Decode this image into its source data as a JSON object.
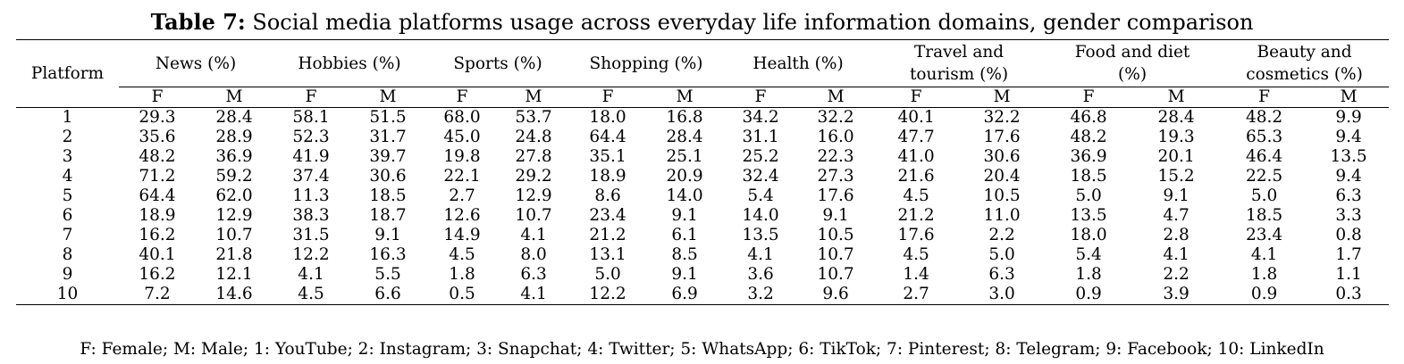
{
  "caption": {
    "label": "Table 7:",
    "text": " Social media platforms usage across everyday life information domains, gender comparison"
  },
  "header": {
    "platform": "Platform",
    "groups": [
      "News (%)",
      "Hobbies (%)",
      "Sports (%)",
      "Shopping (%)",
      "Health (%)",
      "Travel and tourism (%)",
      "Food and diet (%)",
      "Beauty and cosmetics (%)"
    ],
    "sub": [
      "F",
      "M"
    ]
  },
  "rows": [
    {
      "p": "1",
      "v": [
        "29.3",
        "28.4",
        "58.1",
        "51.5",
        "68.0",
        "53.7",
        "18.0",
        "16.8",
        "34.2",
        "32.2",
        "40.1",
        "32.2",
        "46.8",
        "28.4",
        "48.2",
        "9.9"
      ]
    },
    {
      "p": "2",
      "v": [
        "35.6",
        "28.9",
        "52.3",
        "31.7",
        "45.0",
        "24.8",
        "64.4",
        "28.4",
        "31.1",
        "16.0",
        "47.7",
        "17.6",
        "48.2",
        "19.3",
        "65.3",
        "9.4"
      ]
    },
    {
      "p": "3",
      "v": [
        "48.2",
        "36.9",
        "41.9",
        "39.7",
        "19.8",
        "27.8",
        "35.1",
        "25.1",
        "25.2",
        "22.3",
        "41.0",
        "30.6",
        "36.9",
        "20.1",
        "46.4",
        "13.5"
      ]
    },
    {
      "p": "4",
      "v": [
        "71.2",
        "59.2",
        "37.4",
        "30.6",
        "22.1",
        "29.2",
        "18.9",
        "20.9",
        "32.4",
        "27.3",
        "21.6",
        "20.4",
        "18.5",
        "15.2",
        "22.5",
        "9.4"
      ]
    },
    {
      "p": "5",
      "v": [
        "64.4",
        "62.0",
        "11.3",
        "18.5",
        "2.7",
        "12.9",
        "8.6",
        "14.0",
        "5.4",
        "17.6",
        "4.5",
        "10.5",
        "5.0",
        "9.1",
        "5.0",
        "6.3"
      ]
    },
    {
      "p": "6",
      "v": [
        "18.9",
        "12.9",
        "38.3",
        "18.7",
        "12.6",
        "10.7",
        "23.4",
        "9.1",
        "14.0",
        "9.1",
        "21.2",
        "11.0",
        "13.5",
        "4.7",
        "18.5",
        "3.3"
      ]
    },
    {
      "p": "7",
      "v": [
        "16.2",
        "10.7",
        "31.5",
        "9.1",
        "14.9",
        "4.1",
        "21.2",
        "6.1",
        "13.5",
        "10.5",
        "17.6",
        "2.2",
        "18.0",
        "2.8",
        "23.4",
        "0.8"
      ]
    },
    {
      "p": "8",
      "v": [
        "40.1",
        "21.8",
        "12.2",
        "16.3",
        "4.5",
        "8.0",
        "13.1",
        "8.5",
        "4.1",
        "10.7",
        "4.5",
        "5.0",
        "5.4",
        "4.1",
        "4.1",
        "1.7"
      ]
    },
    {
      "p": "9",
      "v": [
        "16.2",
        "12.1",
        "4.1",
        "5.5",
        "1.8",
        "6.3",
        "5.0",
        "9.1",
        "3.6",
        "10.7",
        "1.4",
        "6.3",
        "1.8",
        "2.2",
        "1.8",
        "1.1"
      ]
    },
    {
      "p": "10",
      "v": [
        "7.2",
        "14.6",
        "4.5",
        "6.6",
        "0.5",
        "4.1",
        "12.2",
        "6.9",
        "3.2",
        "9.6",
        "2.7",
        "3.0",
        "0.9",
        "3.9",
        "0.9",
        "0.3"
      ]
    }
  ],
  "footnote": "F: Female; M: Male; 1: YouTube; 2: Instagram; 3: Snapchat; 4: Twitter; 5: WhatsApp; 6: TikTok; 7: Pinterest; 8: Telegram; 9: Facebook; 10: LinkedIn"
}
